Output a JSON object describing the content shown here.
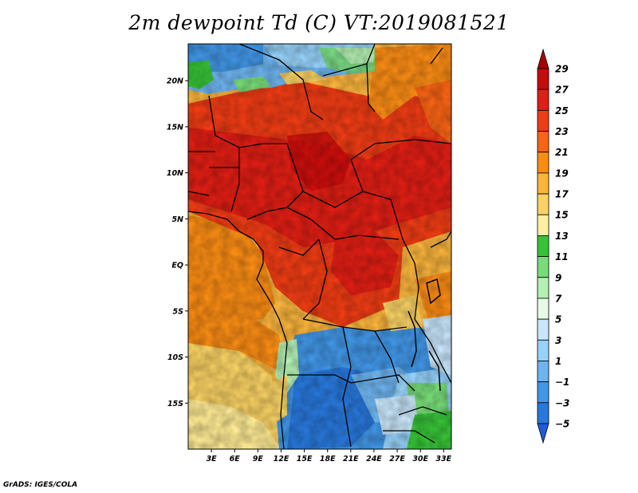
{
  "title": "2m dewpoint Td (C) VT:2019081521",
  "footer": "GrADS: IGES/COLA",
  "map": {
    "lon_range": [
      0,
      34
    ],
    "lat_range": [
      -20,
      24
    ],
    "y_ticks": [
      {
        "lat": 20,
        "label": "20N"
      },
      {
        "lat": 15,
        "label": "15N"
      },
      {
        "lat": 10,
        "label": "10N"
      },
      {
        "lat": 5,
        "label": "5N"
      },
      {
        "lat": 0,
        "label": "EQ"
      },
      {
        "lat": -5,
        "label": "5S"
      },
      {
        "lat": -10,
        "label": "10S"
      },
      {
        "lat": -15,
        "label": "15S"
      }
    ],
    "x_ticks": [
      {
        "lon": 3,
        "label": "3E"
      },
      {
        "lon": 6,
        "label": "6E"
      },
      {
        "lon": 9,
        "label": "9E"
      },
      {
        "lon": 12,
        "label": "12E"
      },
      {
        "lon": 15,
        "label": "15E"
      },
      {
        "lon": 18,
        "label": "18E"
      },
      {
        "lon": 21,
        "label": "21E"
      },
      {
        "lon": 24,
        "label": "24E"
      },
      {
        "lon": 27,
        "label": "27E"
      },
      {
        "lon": 30,
        "label": "30E"
      },
      {
        "lon": 33,
        "label": "33E"
      }
    ]
  },
  "colorbar": {
    "levels": [
      "29",
      "27",
      "25",
      "23",
      "21",
      "19",
      "17",
      "15",
      "13",
      "11",
      "9",
      "7",
      "5",
      "3",
      "1",
      "−1",
      "−3",
      "−5"
    ],
    "colors_top_to_bottom": [
      "#a80000",
      "#c80a0a",
      "#e11e14",
      "#f03c14",
      "#fa6414",
      "#fa8c14",
      "#fab43c",
      "#fad264",
      "#fff0a0",
      "#37c337",
      "#78dc78",
      "#b4f0b4",
      "#e6fae6",
      "#c8e6fa",
      "#96d2fa",
      "#6eb4f0",
      "#4196e6",
      "#2878dc",
      "#1e5adc"
    ]
  }
}
